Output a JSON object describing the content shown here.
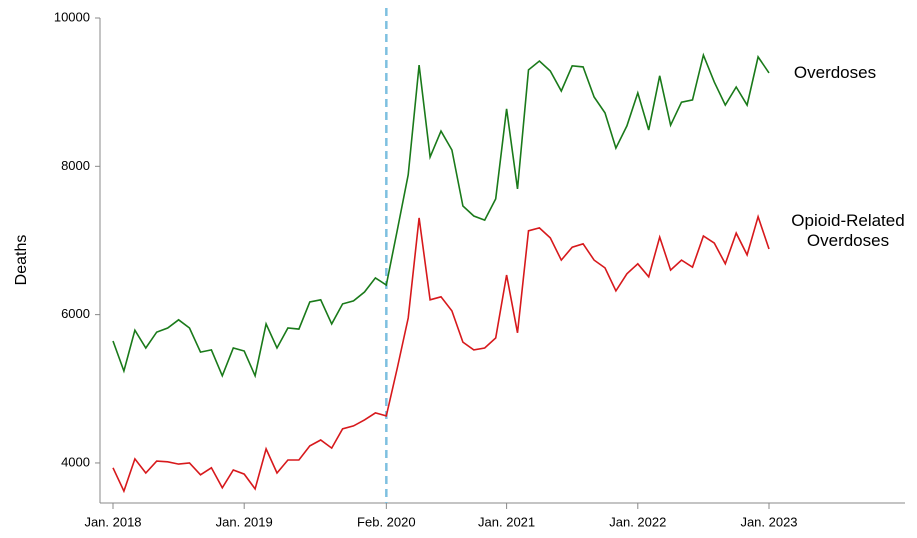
{
  "chart_data": {
    "type": "line",
    "y_label": "Deaths",
    "categories": [
      "Jan. 2018",
      null,
      null,
      null,
      null,
      null,
      null,
      null,
      null,
      null,
      null,
      null,
      "Jan. 2019",
      null,
      null,
      null,
      null,
      null,
      null,
      null,
      null,
      null,
      null,
      null,
      null,
      "Feb. 2020",
      null,
      null,
      null,
      null,
      null,
      null,
      null,
      null,
      null,
      null,
      "Jan. 2021",
      null,
      null,
      null,
      null,
      null,
      null,
      null,
      null,
      null,
      null,
      null,
      "Jan. 2022",
      null,
      null,
      null,
      null,
      null,
      null,
      null,
      null,
      null,
      null,
      null,
      "Jan. 2023"
    ],
    "series": [
      {
        "name": "Overdoses",
        "color": "#1a7a1a",
        "values": [
          5645,
          5240,
          5790,
          5550,
          5765,
          5820,
          5930,
          5820,
          5495,
          5525,
          5175,
          5550,
          5510,
          5175,
          5875,
          5550,
          5820,
          5805,
          6170,
          6200,
          5875,
          6145,
          6185,
          6305,
          6495,
          6400,
          7140,
          7885,
          9365,
          8125,
          8475,
          8220,
          7465,
          7330,
          7275,
          7560,
          8775,
          7695,
          9300,
          9420,
          9285,
          9015,
          9355,
          9340,
          8935,
          8720,
          8245,
          8545,
          8990,
          8490,
          9220,
          8555,
          8865,
          8895,
          9500,
          9135,
          8825,
          9070,
          8825,
          9475,
          9260
        ]
      },
      {
        "name": "Opioid-Related Overdoses",
        "color": "#d7191c",
        "values": [
          3935,
          3620,
          4055,
          3865,
          4025,
          4015,
          3985,
          4000,
          3840,
          3935,
          3665,
          3905,
          3850,
          3650,
          4190,
          3865,
          4040,
          4040,
          4230,
          4310,
          4200,
          4460,
          4500,
          4580,
          4675,
          4635,
          5280,
          5955,
          7305,
          6200,
          6240,
          6050,
          5630,
          5525,
          5550,
          5685,
          6535,
          5755,
          7130,
          7170,
          7035,
          6735,
          6910,
          6955,
          6735,
          6630,
          6320,
          6550,
          6685,
          6510,
          7045,
          6600,
          6735,
          6640,
          7060,
          6965,
          6685,
          7100,
          6805,
          7320,
          6885
        ]
      }
    ],
    "ylim": [
      3460,
      10000
    ],
    "yticks": [
      4000,
      6000,
      8000,
      10000
    ],
    "reference_line": {
      "x": "Feb. 2020",
      "color": "#7ec0e0",
      "style": "dashed"
    },
    "grid": false
  }
}
